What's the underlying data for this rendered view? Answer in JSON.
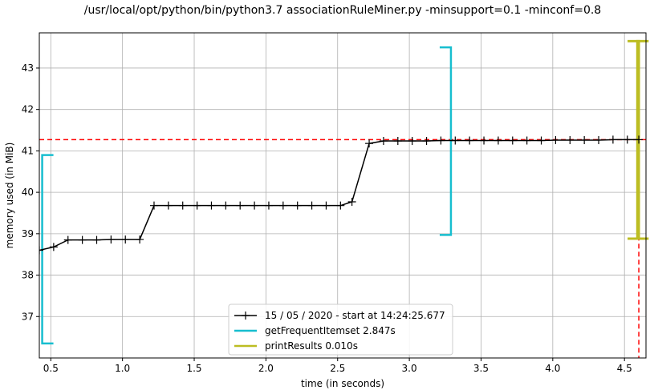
{
  "chart_data": {
    "type": "line",
    "title": "/usr/local/opt/python/bin/python3.7 associationRuleMiner.py -minsupport=0.1 -minconf=0.8",
    "xlabel": "time (in seconds)",
    "ylabel": "memory used (in MiB)",
    "xlim": [
      0.42,
      4.65
    ],
    "ylim": [
      36.0,
      43.85
    ],
    "xticks": [
      0.5,
      1.0,
      1.5,
      2.0,
      2.5,
      3.0,
      3.5,
      4.0,
      4.5
    ],
    "xtick_labels": [
      "0.5",
      "1.0",
      "1.5",
      "2.0",
      "2.5",
      "3.0",
      "3.5",
      "4.0",
      "4.5"
    ],
    "yticks": [
      37,
      38,
      39,
      40,
      41,
      42,
      43
    ],
    "ytick_labels": [
      "37",
      "38",
      "39",
      "40",
      "41",
      "42",
      "43"
    ],
    "grid": true,
    "legend_position": "bottom-center",
    "series": [
      {
        "name": "15 / 05 / 2020 - start at 14:24:25.677",
        "color": "#000000",
        "marker": "plus",
        "x": [
          0.42,
          0.52,
          0.62,
          0.72,
          0.82,
          0.92,
          1.02,
          1.12,
          1.22,
          1.32,
          1.42,
          1.52,
          1.62,
          1.72,
          1.82,
          1.92,
          2.02,
          2.12,
          2.22,
          2.32,
          2.42,
          2.52,
          2.6,
          2.72,
          2.82,
          2.92,
          3.02,
          3.12,
          3.22,
          3.32,
          3.42,
          3.52,
          3.62,
          3.72,
          3.82,
          3.92,
          4.02,
          4.12,
          4.22,
          4.32,
          4.42,
          4.52,
          4.6
        ],
        "y": [
          38.6,
          38.68,
          38.85,
          38.85,
          38.85,
          38.86,
          38.86,
          38.86,
          39.68,
          39.68,
          39.68,
          39.68,
          39.68,
          39.68,
          39.68,
          39.68,
          39.68,
          39.68,
          39.68,
          39.68,
          39.68,
          39.68,
          39.77,
          41.18,
          41.24,
          41.24,
          41.24,
          41.24,
          41.25,
          41.25,
          41.25,
          41.25,
          41.25,
          41.25,
          41.25,
          41.25,
          41.26,
          41.26,
          41.26,
          41.26,
          41.27,
          41.27,
          41.27
        ]
      },
      {
        "name": "getFrequentItemset 2.847s",
        "color": "#17becf",
        "kind": "bracket",
        "start": 0.44,
        "end": 3.29,
        "start_range": [
          36.35,
          40.9
        ],
        "end_range": [
          38.97,
          43.5
        ]
      },
      {
        "name": "printResults 0.010s",
        "color": "#bcbd22",
        "kind": "bracket",
        "start": 4.59,
        "end": 4.6,
        "start_range": [
          38.88,
          43.65
        ],
        "end_range": [
          38.88,
          43.65
        ]
      }
    ],
    "reference_lines": {
      "max_memory_y": 41.27,
      "max_memory_x": 4.6,
      "color": "#ff0000"
    }
  }
}
